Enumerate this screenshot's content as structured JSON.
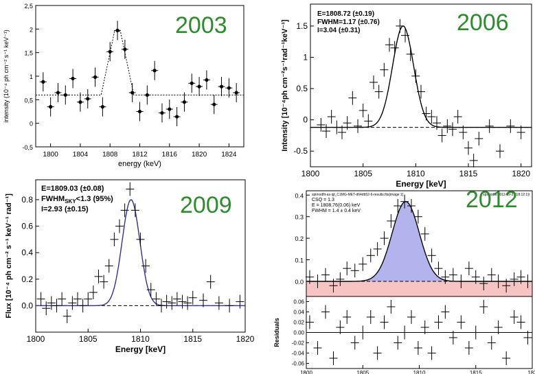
{
  "colors": {
    "year": "#2e8b2e",
    "fill_blue": "#b3b3ee",
    "fill_pink": "#f7c4c4",
    "curve_blue": "#3030a0"
  },
  "charts": [
    {
      "type": "scatter",
      "year": "2003",
      "xlabel": "energy (keV)",
      "ylabel": "intensity (10⁻⁴ ph cm⁻² s⁻¹ keV⁻¹)",
      "xlim": [
        1798,
        1826
      ],
      "ylim": [
        -0.5,
        2.5
      ],
      "xticks": [
        "1800",
        "1804",
        "1808",
        "1812",
        "1816",
        "1820",
        "1824"
      ],
      "yticks": [
        "-0,5",
        "0",
        "0,5",
        "1",
        "1,5",
        "2",
        "2,5"
      ],
      "annotations": [],
      "points": [
        [
          1799,
          0.88
        ],
        [
          1800,
          0.35
        ],
        [
          1801,
          0.65
        ],
        [
          1802,
          0.6
        ],
        [
          1803,
          0.95
        ],
        [
          1804,
          0.45
        ],
        [
          1805,
          0.52
        ],
        [
          1806,
          0.98
        ],
        [
          1807,
          0.35
        ],
        [
          1808,
          1.52
        ],
        [
          1809,
          1.97
        ],
        [
          1810,
          1.57
        ],
        [
          1811,
          0.65
        ],
        [
          1812,
          0.25
        ],
        [
          1813,
          0.6
        ],
        [
          1814,
          1.12
        ],
        [
          1815,
          0.22
        ],
        [
          1816,
          0.3
        ],
        [
          1817,
          0.14
        ],
        [
          1818,
          0.45
        ],
        [
          1819,
          0.85
        ],
        [
          1820,
          0.78
        ],
        [
          1821,
          0.92
        ],
        [
          1822,
          0.4
        ],
        [
          1823,
          0.78
        ],
        [
          1824,
          0.75
        ],
        [
          1825,
          0.65
        ]
      ],
      "model": {
        "kind": "box",
        "base": 0.6,
        "peak": 1.95,
        "center": 1809,
        "width": 1.6
      }
    },
    {
      "type": "scatter",
      "year": "2006",
      "xlabel": "Energy [keV]",
      "ylabel": "Intensity [10⁻⁴ph cm⁻²s⁻¹rad⁻¹keV⁻¹]",
      "xlim": [
        1800,
        1821
      ],
      "ylim": [
        -0.75,
        1.85
      ],
      "xticks": [
        "1800",
        "1805",
        "1810",
        "1815",
        "1820"
      ],
      "yticks": [
        "-0.5",
        "0",
        "0.5",
        "1",
        "1.5"
      ],
      "annotations": [
        "E=1808.72 (±0.19)",
        "FWHM=1.17 (±0.76)",
        "I=3.04 (±0.31)"
      ],
      "points": [
        [
          1801,
          -0.08
        ],
        [
          1801.5,
          -0.18
        ],
        [
          1802,
          0.05
        ],
        [
          1802.5,
          -0.12
        ],
        [
          1803,
          -0.2
        ],
        [
          1803.5,
          -0.05
        ],
        [
          1804,
          0.35
        ],
        [
          1804.5,
          -0.1
        ],
        [
          1805,
          0.15
        ],
        [
          1805.5,
          -0.02
        ],
        [
          1806,
          0.6
        ],
        [
          1806.5,
          0.45
        ],
        [
          1807,
          0.8
        ],
        [
          1807.5,
          1.2
        ],
        [
          1808,
          1.15
        ],
        [
          1808.5,
          1.5
        ],
        [
          1809,
          1.35
        ],
        [
          1809.5,
          1.05
        ],
        [
          1810,
          0.7
        ],
        [
          1810.5,
          0.45
        ],
        [
          1811,
          0.1
        ],
        [
          1811.5,
          0.05
        ],
        [
          1812,
          -0.05
        ],
        [
          1812.5,
          -0.25
        ],
        [
          1813,
          -0.1
        ],
        [
          1813.5,
          -0.15
        ],
        [
          1814,
          0.05
        ],
        [
          1814.5,
          -0.2
        ],
        [
          1815,
          -0.45
        ],
        [
          1815.5,
          -0.65
        ],
        [
          1816,
          -0.3
        ],
        [
          1817,
          -0.1
        ],
        [
          1818,
          -0.5
        ],
        [
          1819,
          -0.1
        ],
        [
          1820,
          -0.2
        ]
      ],
      "model": {
        "kind": "gauss",
        "base": -0.12,
        "amp": 1.62,
        "center": 1808.8,
        "sigma": 1.0
      },
      "baseline": -0.12
    },
    {
      "type": "scatter",
      "year": "2009",
      "xlabel": "Energy [keV]",
      "ylabel": "Flux [10⁻⁴ ph cm⁻² s⁻¹ keV⁻¹ rad⁻¹]",
      "xlim": [
        1800,
        1820
      ],
      "ylim": [
        -0.2,
        0.95
      ],
      "xticks": [
        "1800",
        "1805",
        "1810",
        "1815",
        "1820"
      ],
      "yticks": [
        "0.0",
        "0.2",
        "0.4",
        "0.6",
        "0.8"
      ],
      "annotations": [
        "E=1809.03 (±0.08)",
        "FWHM",
        "SKY",
        "<1.3 (95%)",
        "I=2.93 (±0.15)"
      ],
      "points": [
        [
          1800.5,
          0.05
        ],
        [
          1801,
          -0.02
        ],
        [
          1801.5,
          0.02
        ],
        [
          1802,
          0.0
        ],
        [
          1802.5,
          0.05
        ],
        [
          1803,
          -0.08
        ],
        [
          1803.5,
          0.02
        ],
        [
          1804,
          0.05
        ],
        [
          1804.5,
          0.0
        ],
        [
          1805,
          0.05
        ],
        [
          1805.5,
          0.1
        ],
        [
          1806,
          0.22
        ],
        [
          1806.5,
          0.18
        ],
        [
          1807,
          0.3
        ],
        [
          1807.5,
          0.5
        ],
        [
          1808,
          0.6
        ],
        [
          1808.5,
          0.72
        ],
        [
          1809,
          0.88
        ],
        [
          1809.5,
          0.72
        ],
        [
          1810,
          0.5
        ],
        [
          1810.5,
          0.3
        ],
        [
          1811,
          0.12
        ],
        [
          1811.5,
          0.05
        ],
        [
          1812,
          0.0
        ],
        [
          1812.5,
          0.03
        ],
        [
          1813,
          0.02
        ],
        [
          1813.5,
          0.05
        ],
        [
          1814,
          0.03
        ],
        [
          1814.5,
          0.02
        ],
        [
          1815,
          0.06
        ],
        [
          1816,
          0.04
        ],
        [
          1816.7,
          0.18
        ],
        [
          1817.5,
          0.02
        ],
        [
          1818.5,
          0.0
        ],
        [
          1819.5,
          0.03
        ]
      ],
      "model": {
        "kind": "gauss",
        "base": 0.0,
        "amp": 0.8,
        "center": 1809.1,
        "sigma": 0.85
      },
      "baseline": 0.0
    },
    {
      "type": "area",
      "year": "2012",
      "xlabel": "",
      "ylabel": "",
      "xlim": [
        1800,
        1820
      ],
      "ylim": [
        -0.07,
        0.42
      ],
      "xticks": [
        "1800",
        "1805",
        "1810",
        "1815",
        "182"
      ],
      "yticks": [
        "0.0",
        "0.1",
        "0.2",
        "0.3",
        "0.4"
      ],
      "header": [
        "spimodfit-as-igl_C1MG-MET-d64db52-6-results.fits[image 1]",
        "spimodfit 2012-09-27 18:12:19"
      ],
      "annotations": [
        "CSQ = 1.3",
        "E = 1808.76(0.06) keV",
        "FWHM = 1.4 ± 0.4 keV"
      ],
      "residuals_label": "Residuals",
      "residual_ticks": [
        "0.06",
        "0.04",
        "0.02",
        "0.00",
        "-0.02",
        "-0.04",
        "-0.06"
      ],
      "points": [
        [
          1800.3,
          0.02
        ],
        [
          1801,
          0.0
        ],
        [
          1801.7,
          0.03
        ],
        [
          1802.4,
          -0.02
        ],
        [
          1803,
          0.01
        ],
        [
          1803.6,
          0.06
        ],
        [
          1804.3,
          0.05
        ],
        [
          1805,
          0.08
        ],
        [
          1805.7,
          0.12
        ],
        [
          1806.3,
          0.15
        ],
        [
          1806.9,
          0.2
        ],
        [
          1807.5,
          0.28
        ],
        [
          1808.1,
          0.35
        ],
        [
          1808.7,
          0.37
        ],
        [
          1809.3,
          0.35
        ],
        [
          1809.9,
          0.3
        ],
        [
          1810.5,
          0.22
        ],
        [
          1811.1,
          0.12
        ],
        [
          1811.7,
          0.06
        ],
        [
          1812.3,
          0.02
        ],
        [
          1813,
          0.03
        ],
        [
          1813.7,
          0.0
        ],
        [
          1814.4,
          0.06
        ],
        [
          1815,
          0.02
        ],
        [
          1815.7,
          -0.01
        ],
        [
          1816.4,
          0.03
        ],
        [
          1817,
          0.0
        ],
        [
          1817.7,
          -0.02
        ],
        [
          1818.4,
          0.01
        ],
        [
          1819,
          0.02
        ],
        [
          1819.6,
          0.0
        ]
      ],
      "residuals": [
        0.02,
        -0.03,
        0.04,
        -0.05,
        0.01,
        0.03,
        -0.02,
        0.0,
        0.03,
        -0.04,
        0.02,
        0.05,
        -0.02,
        0.0,
        0.03,
        -0.03,
        0.01,
        -0.04,
        0.02,
        0.04,
        -0.01,
        0.02,
        -0.03,
        0.0,
        0.05,
        -0.02,
        0.01,
        -0.05,
        0.03,
        0.02,
        -0.01
      ],
      "model": {
        "kind": "gauss",
        "base": 0.0,
        "amp": 0.37,
        "center": 1808.8,
        "sigma": 1.2
      },
      "baseline": 0.0
    }
  ]
}
